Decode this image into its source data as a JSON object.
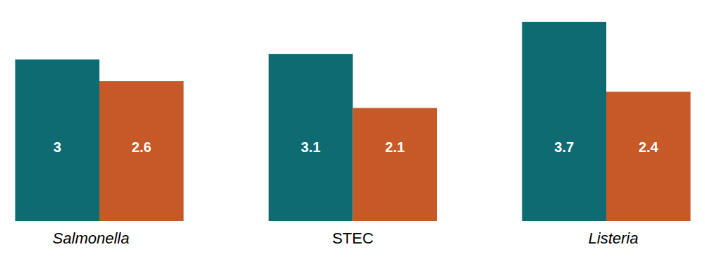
{
  "chart_data": {
    "type": "bar",
    "categories": [
      "Salmonella",
      "STEC",
      "Listeria"
    ],
    "series": [
      {
        "color": "#0f6b72",
        "values": [
          3,
          3.1,
          3.7
        ]
      },
      {
        "color": "#c55a28",
        "values": [
          2.6,
          2.1,
          2.4
        ]
      }
    ],
    "ylim": [
      0,
      4
    ],
    "data_labels": true,
    "tick_labels": "x"
  }
}
